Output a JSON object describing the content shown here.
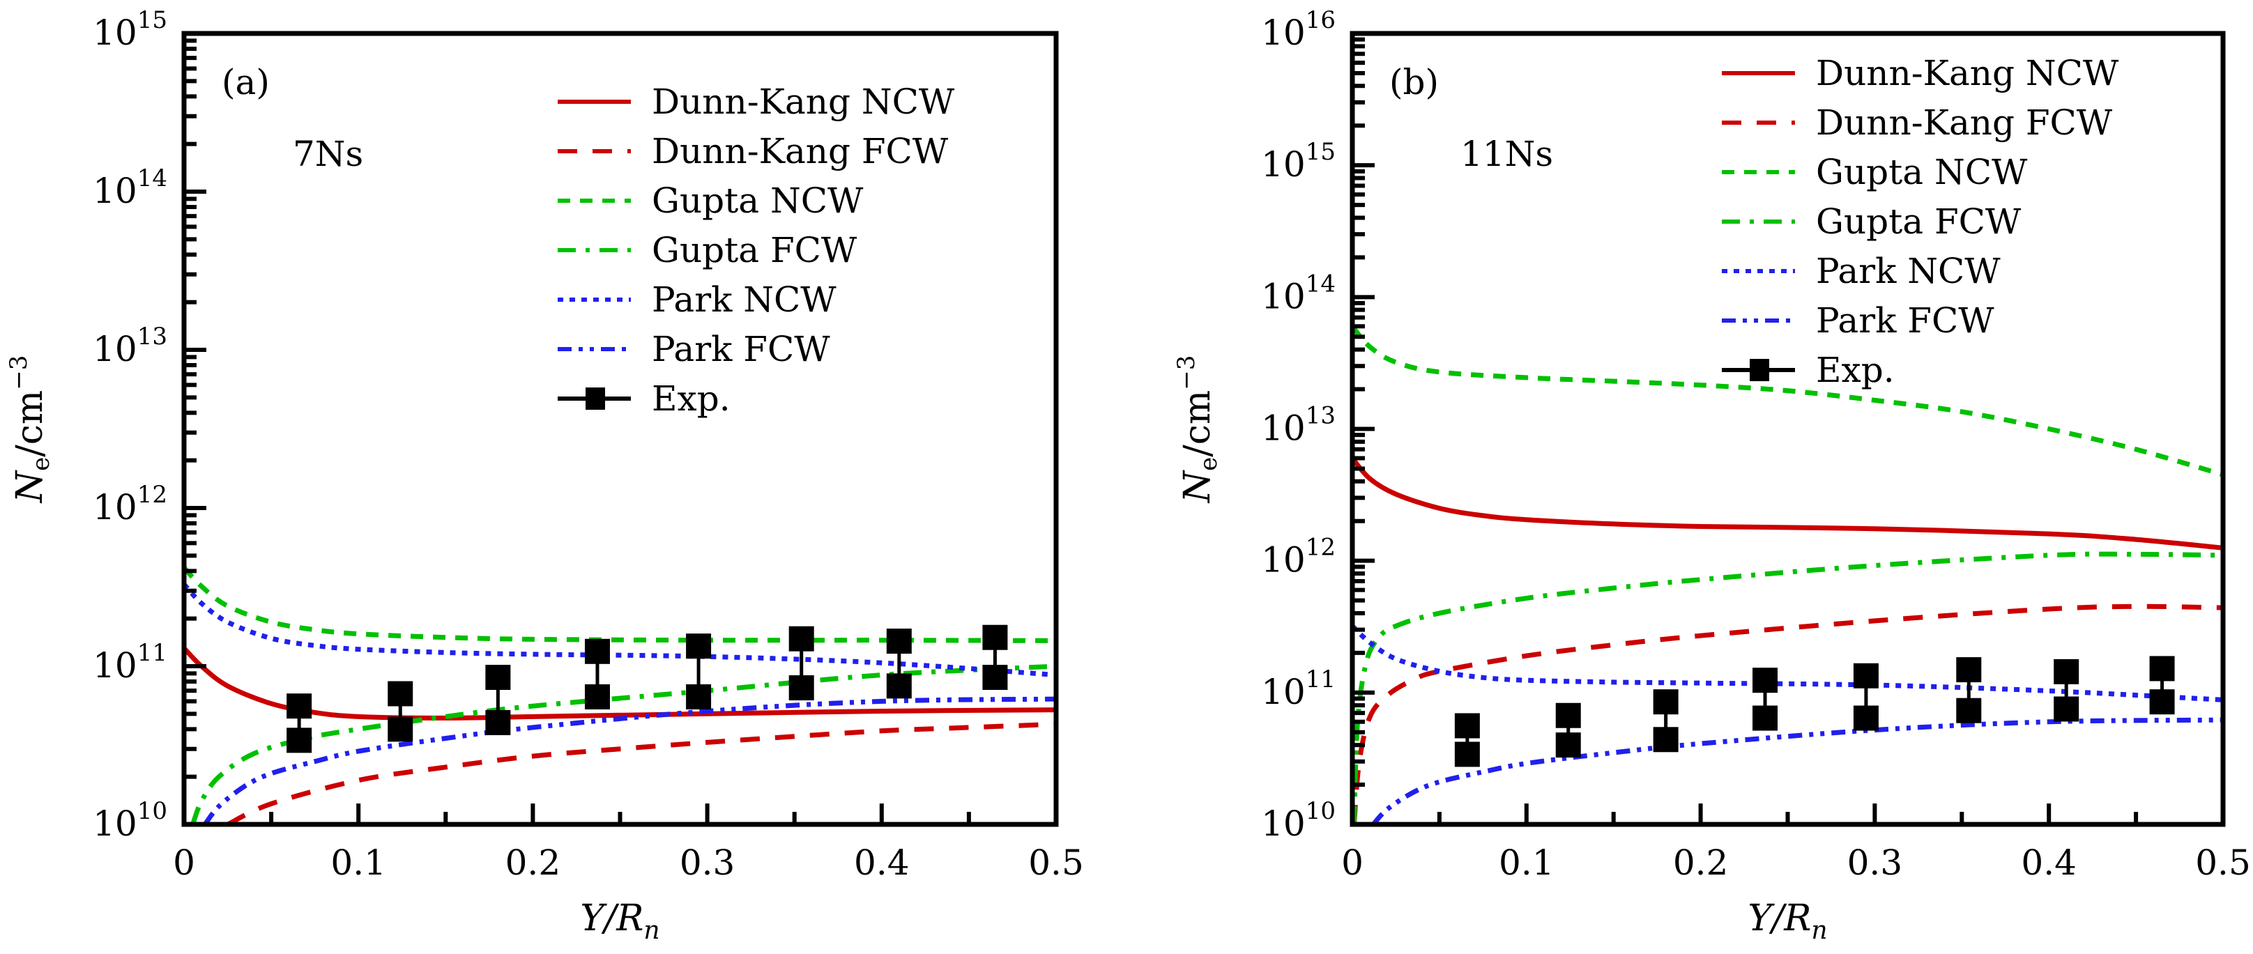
{
  "chart_data": [
    {
      "type": "line",
      "panel_label": "(a)",
      "annotation": "7Ns",
      "title": "",
      "xlabel": "Y/R_n",
      "xlabel_parts": {
        "main": "Y/R",
        "sub": "n"
      },
      "ylabel": "N_e/cm^-3",
      "ylabel_parts": {
        "main": "N",
        "sub": "e",
        "rest": "/cm",
        "sup": "−3"
      },
      "yscale": "log",
      "xlim": [
        0,
        0.5
      ],
      "ylim": [
        10000000000.0,
        1000000000000000.0
      ],
      "x_ticks": [
        "0",
        "0.1",
        "0.2",
        "0.3",
        "0.4",
        "0.5"
      ],
      "x_tick_values": [
        0,
        0.1,
        0.2,
        0.3,
        0.4,
        0.5
      ],
      "y_tick_exponents": [
        "10",
        "11",
        "12",
        "13",
        "14",
        "15"
      ],
      "y_tick_base": "10",
      "legend_position": "top-right",
      "series": [
        {
          "name": "Dunn-Kang NCW",
          "color": "#cc0000",
          "style": "solid",
          "x": [
            0,
            0.01,
            0.025,
            0.05,
            0.075,
            0.1,
            0.15,
            0.2,
            0.3,
            0.4,
            0.5
          ],
          "y": [
            130000000000.0,
            100000000000.0,
            75000000000.0,
            58000000000.0,
            51000000000.0,
            48000000000.0,
            47000000000.0,
            48000000000.0,
            50000000000.0,
            52000000000.0,
            53000000000.0
          ]
        },
        {
          "name": "Dunn-Kang FCW",
          "color": "#cc0000",
          "style": "dashed",
          "x": [
            0.025,
            0.05,
            0.1,
            0.15,
            0.2,
            0.25,
            0.3,
            0.35,
            0.4,
            0.45,
            0.5
          ],
          "y": [
            10000000000.0,
            13500000000.0,
            19000000000.0,
            23000000000.0,
            27000000000.0,
            30000000000.0,
            33000000000.0,
            36000000000.0,
            39000000000.0,
            41000000000.0,
            43000000000.0
          ]
        },
        {
          "name": "Gupta NCW",
          "color": "#00c000",
          "style": "shortdash",
          "x": [
            0,
            0.01,
            0.025,
            0.05,
            0.075,
            0.1,
            0.15,
            0.2,
            0.3,
            0.4,
            0.5
          ],
          "y": [
            420000000000.0,
            320000000000.0,
            240000000000.0,
            190000000000.0,
            170000000000.0,
            160000000000.0,
            152000000000.0,
            148000000000.0,
            146000000000.0,
            146000000000.0,
            145000000000.0
          ]
        },
        {
          "name": "Gupta FCW",
          "color": "#00c000",
          "style": "dashdot",
          "x": [
            0.005,
            0.01,
            0.02,
            0.04,
            0.07,
            0.1,
            0.15,
            0.2,
            0.3,
            0.4,
            0.5
          ],
          "y": [
            10000000000.0,
            14000000000.0,
            20000000000.0,
            28000000000.0,
            35000000000.0,
            40000000000.0,
            48000000000.0,
            56000000000.0,
            70000000000.0,
            88000000000.0,
            100000000000.0
          ]
        },
        {
          "name": "Park NCW",
          "color": "#2020ee",
          "style": "dotted",
          "x": [
            0,
            0.01,
            0.025,
            0.05,
            0.075,
            0.1,
            0.15,
            0.2,
            0.3,
            0.4,
            0.5
          ],
          "y": [
            330000000000.0,
            250000000000.0,
            190000000000.0,
            150000000000.0,
            135000000000.0,
            128000000000.0,
            122000000000.0,
            119000000000.0,
            115000000000.0,
            105000000000.0,
            88000000000.0
          ]
        },
        {
          "name": "Park FCW",
          "color": "#2020ee",
          "style": "dashdotdot",
          "x": [
            0.012,
            0.02,
            0.035,
            0.05,
            0.075,
            0.1,
            0.15,
            0.2,
            0.3,
            0.4,
            0.5
          ],
          "y": [
            10000000000.0,
            13000000000.0,
            17500000000.0,
            21000000000.0,
            25000000000.0,
            29000000000.0,
            35000000000.0,
            41000000000.0,
            52000000000.0,
            60000000000.0,
            62000000000.0
          ]
        }
      ],
      "experiment": {
        "name": "Exp.",
        "color": "#000000",
        "x": [
          0.066,
          0.124,
          0.18,
          0.237,
          0.295,
          0.354,
          0.41,
          0.465
        ],
        "y_high": [
          56000000000.0,
          67000000000.0,
          85000000000.0,
          124000000000.0,
          134000000000.0,
          149000000000.0,
          144000000000.0,
          152000000000.0
        ],
        "y_low": [
          34000000000.0,
          40000000000.0,
          44000000000.0,
          64000000000.0,
          64000000000.0,
          73000000000.0,
          75000000000.0,
          85000000000.0
        ]
      }
    },
    {
      "type": "line",
      "panel_label": "(b)",
      "annotation": "11Ns",
      "title": "",
      "xlabel": "Y/R_n",
      "xlabel_parts": {
        "main": "Y/R",
        "sub": "n"
      },
      "ylabel": "N_e/cm^-3",
      "ylabel_parts": {
        "main": "N",
        "sub": "e",
        "rest": "/cm",
        "sup": "−3"
      },
      "yscale": "log",
      "xlim": [
        0,
        0.5
      ],
      "ylim": [
        10000000000.0,
        1e+16
      ],
      "x_ticks": [
        "0",
        "0.1",
        "0.2",
        "0.3",
        "0.4",
        "0.5"
      ],
      "x_tick_values": [
        0,
        0.1,
        0.2,
        0.3,
        0.4,
        0.5
      ],
      "y_tick_exponents": [
        "10",
        "11",
        "12",
        "13",
        "14",
        "15",
        "16"
      ],
      "y_tick_base": "10",
      "legend_position": "top-right",
      "series": [
        {
          "name": "Dunn-Kang NCW",
          "color": "#cc0000",
          "style": "solid",
          "x": [
            0,
            0.01,
            0.025,
            0.05,
            0.075,
            0.1,
            0.15,
            0.2,
            0.3,
            0.4,
            0.45,
            0.5
          ],
          "y": [
            6000000000000.0,
            4200000000000.0,
            3200000000000.0,
            2500000000000.0,
            2200000000000.0,
            2050000000000.0,
            1900000000000.0,
            1820000000000.0,
            1750000000000.0,
            1600000000000.0,
            1450000000000.0,
            1250000000000.0
          ]
        },
        {
          "name": "Dunn-Kang FCW",
          "color": "#cc0000",
          "style": "dashed",
          "x": [
            0.001,
            0.004,
            0.01,
            0.02,
            0.035,
            0.05,
            0.1,
            0.15,
            0.2,
            0.3,
            0.4,
            0.45,
            0.5
          ],
          "y": [
            10000000000.0,
            30000000000.0,
            65000000000.0,
            95000000000.0,
            125000000000.0,
            145000000000.0,
            190000000000.0,
            230000000000.0,
            270000000000.0,
            350000000000.0,
            430000000000.0,
            450000000000.0,
            440000000000.0
          ]
        },
        {
          "name": "Gupta NCW",
          "color": "#00c000",
          "style": "shortdash",
          "x": [
            0,
            0.01,
            0.025,
            0.05,
            0.1,
            0.15,
            0.2,
            0.25,
            0.3,
            0.35,
            0.4,
            0.45,
            0.5
          ],
          "y": [
            60000000000000.0,
            42000000000000.0,
            32000000000000.0,
            27000000000000.0,
            24500000000000.0,
            23000000000000.0,
            21500000000000.0,
            19500000000000.0,
            16500000000000.0,
            13500000000000.0,
            10000000000000.0,
            7000000000000.0,
            4500000000000.0
          ]
        },
        {
          "name": "Gupta FCW",
          "color": "#00c000",
          "style": "dashdot",
          "x": [
            0.001,
            0.003,
            0.008,
            0.015,
            0.025,
            0.05,
            0.1,
            0.15,
            0.2,
            0.3,
            0.4,
            0.45,
            0.5
          ],
          "y": [
            10000000000.0,
            60000000000.0,
            170000000000.0,
            260000000000.0,
            320000000000.0,
            400000000000.0,
            520000000000.0,
            620000000000.0,
            720000000000.0,
            920000000000.0,
            1100000000000.0,
            1120000000000.0,
            1100000000000.0
          ]
        },
        {
          "name": "Park NCW",
          "color": "#2020ee",
          "style": "dotted",
          "x": [
            0,
            0.01,
            0.025,
            0.05,
            0.075,
            0.1,
            0.15,
            0.2,
            0.3,
            0.4,
            0.5
          ],
          "y": [
            320000000000.0,
            240000000000.0,
            180000000000.0,
            145000000000.0,
            130000000000.0,
            124000000000.0,
            120000000000.0,
            118000000000.0,
            114000000000.0,
            103000000000.0,
            88000000000.0
          ]
        },
        {
          "name": "Park FCW",
          "color": "#2020ee",
          "style": "dashdotdot",
          "x": [
            0.012,
            0.02,
            0.035,
            0.05,
            0.075,
            0.1,
            0.15,
            0.2,
            0.3,
            0.4,
            0.5
          ],
          "y": [
            10000000000.0,
            13000000000.0,
            17500000000.0,
            21000000000.0,
            25000000000.0,
            29000000000.0,
            35000000000.0,
            41000000000.0,
            52000000000.0,
            60000000000.0,
            62000000000.0
          ]
        }
      ],
      "experiment": {
        "name": "Exp.",
        "color": "#000000",
        "x": [
          0.066,
          0.124,
          0.18,
          0.237,
          0.295,
          0.354,
          0.41,
          0.465
        ],
        "y_high": [
          56000000000.0,
          67000000000.0,
          85000000000.0,
          124000000000.0,
          134000000000.0,
          149000000000.0,
          144000000000.0,
          152000000000.0
        ],
        "y_low": [
          34000000000.0,
          40000000000.0,
          44000000000.0,
          64000000000.0,
          64000000000.0,
          73000000000.0,
          75000000000.0,
          85000000000.0
        ]
      }
    }
  ]
}
